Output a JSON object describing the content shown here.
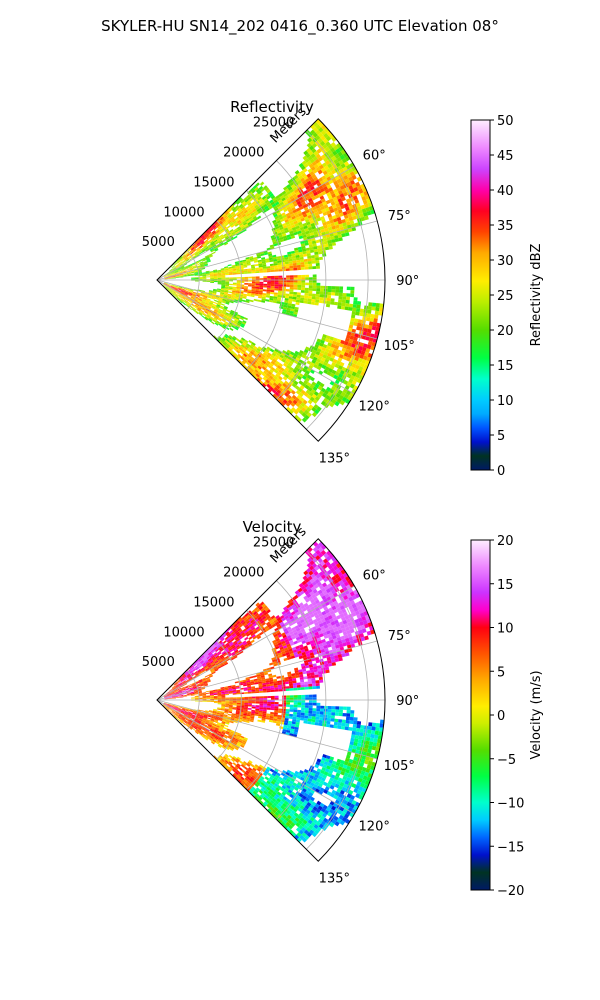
{
  "figure": {
    "suptitle": "SKYLER-HU  SN14_202  0416_0.360 UTC Elevation 08°"
  },
  "chart_data": [
    {
      "type": "heatmap",
      "projection": "polar-sector",
      "title": "Reflectivity",
      "radial_label": "Meters",
      "radial_ticks": [
        "5000",
        "10000",
        "15000",
        "20000",
        "25000"
      ],
      "radial_tick_values": [
        5000,
        10000,
        15000,
        20000,
        25000
      ],
      "rlim": [
        0,
        27000
      ],
      "angular_ticks": [
        "60°",
        "75°",
        "90°",
        "105°",
        "120°",
        "135°"
      ],
      "angular_tick_values": [
        60,
        75,
        90,
        105,
        120,
        135
      ],
      "theta_range_deg": [
        45,
        135
      ],
      "grid": true,
      "colorbar": {
        "label": "Reflectivity dBZ",
        "min": 0,
        "max": 50,
        "ticks": [
          "0",
          "5",
          "10",
          "15",
          "20",
          "25",
          "30",
          "35",
          "40",
          "45",
          "50"
        ],
        "tick_values": [
          0,
          5,
          10,
          15,
          20,
          25,
          30,
          35,
          40,
          45,
          50
        ],
        "stops": [
          {
            "v": 0,
            "color": "#001a66"
          },
          {
            "v": 2,
            "color": "#003322"
          },
          {
            "v": 4,
            "color": "#0011cc"
          },
          {
            "v": 6,
            "color": "#0055ff"
          },
          {
            "v": 8,
            "color": "#00aaff"
          },
          {
            "v": 10,
            "color": "#00ccff"
          },
          {
            "v": 13,
            "color": "#00ffcc"
          },
          {
            "v": 16,
            "color": "#00ff44"
          },
          {
            "v": 20,
            "color": "#55dd00"
          },
          {
            "v": 24,
            "color": "#bbee00"
          },
          {
            "v": 27,
            "color": "#ffee00"
          },
          {
            "v": 31,
            "color": "#ffaa00"
          },
          {
            "v": 34,
            "color": "#ff4400"
          },
          {
            "v": 37,
            "color": "#ff0022"
          },
          {
            "v": 40,
            "color": "#ff00aa"
          },
          {
            "v": 43,
            "color": "#cc44ff"
          },
          {
            "v": 46,
            "color": "#ee88ff"
          },
          {
            "v": 50,
            "color": "#ffeeff"
          }
        ]
      },
      "field_range": [
        8,
        38
      ]
    },
    {
      "type": "heatmap",
      "projection": "polar-sector",
      "title": "Velocity",
      "radial_label": "Meters",
      "radial_ticks": [
        "5000",
        "10000",
        "15000",
        "20000",
        "25000"
      ],
      "radial_tick_values": [
        5000,
        10000,
        15000,
        20000,
        25000
      ],
      "rlim": [
        0,
        27000
      ],
      "angular_ticks": [
        "60°",
        "75°",
        "90°",
        "105°",
        "120°",
        "135°"
      ],
      "angular_tick_values": [
        60,
        75,
        90,
        105,
        120,
        135
      ],
      "theta_range_deg": [
        45,
        135
      ],
      "grid": true,
      "colorbar": {
        "label": "Velocity (m/s)",
        "min": -20,
        "max": 20,
        "ticks": [
          "−20",
          "−15",
          "−10",
          "−5",
          "0",
          "5",
          "10",
          "15",
          "20"
        ],
        "tick_values": [
          -20,
          -15,
          -10,
          -5,
          0,
          5,
          10,
          15,
          20
        ],
        "stops": [
          {
            "v": -20,
            "color": "#001a66"
          },
          {
            "v": -18,
            "color": "#003322"
          },
          {
            "v": -16,
            "color": "#0011cc"
          },
          {
            "v": -14,
            "color": "#0066ff"
          },
          {
            "v": -12,
            "color": "#00ccff"
          },
          {
            "v": -10,
            "color": "#00ffcc"
          },
          {
            "v": -7,
            "color": "#00ff44"
          },
          {
            "v": -4,
            "color": "#55dd00"
          },
          {
            "v": -1,
            "color": "#ccee00"
          },
          {
            "v": 1,
            "color": "#ffee00"
          },
          {
            "v": 4,
            "color": "#ffaa00"
          },
          {
            "v": 7,
            "color": "#ff5500"
          },
          {
            "v": 10,
            "color": "#ff0011"
          },
          {
            "v": 12,
            "color": "#ff00cc"
          },
          {
            "v": 14,
            "color": "#cc33ff"
          },
          {
            "v": 17,
            "color": "#ee88ff"
          },
          {
            "v": 20,
            "color": "#ffeeff"
          }
        ]
      },
      "field_range": [
        -16,
        16
      ]
    }
  ]
}
